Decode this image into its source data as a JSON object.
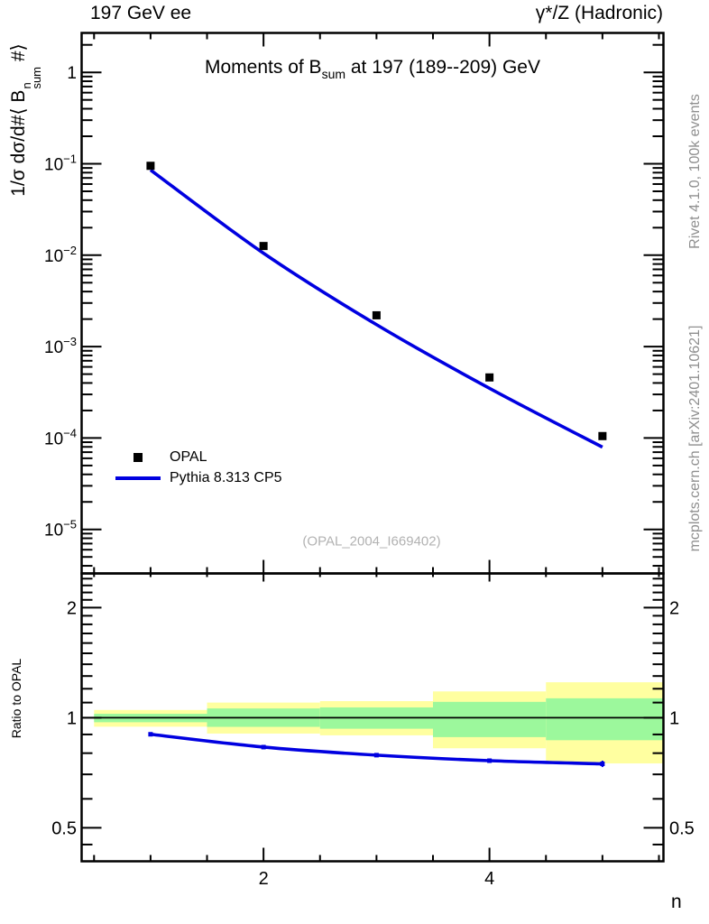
{
  "header": {
    "left": "197 GeV ee",
    "right": "γ*/Z (Hadronic)"
  },
  "title": {
    "pre": "Moments of B",
    "sub": "sum",
    "post": " at 197 (189--209) GeV"
  },
  "y_axis_label": {
    "pre": "1/σ  dσ/d#⟨ B",
    "sup": "n",
    "sub": "sum",
    "post": " #⟩"
  },
  "ratio_axis_label": "Ratio to OPAL",
  "x_axis_label": "n",
  "watermark": "(OPAL_2004_I669402)",
  "side_notes": {
    "rivet": "Rivet 4.1.0,  100k events",
    "mcplots": "mcplots.cern.ch [arXiv:2401.10621]"
  },
  "legend": {
    "items": [
      {
        "label": "OPAL",
        "marker": "filled-square",
        "color": "#000000"
      },
      {
        "label": "Pythia 8.313 CP5",
        "marker": "line",
        "color": "#0000e0"
      }
    ]
  },
  "colors": {
    "model_blue": "#0000e0",
    "band_yellow": "#ffffa0",
    "band_green": "#9cf89c",
    "marker_black": "#000000",
    "note_gray": "#8f8f8f",
    "watermark_gray": "#b2b2b2"
  },
  "chart_data": {
    "type": "line",
    "title": "Moments of B_sum at 197 (189--209) GeV",
    "xlabel": "n",
    "yscale": "log",
    "x": [
      1,
      2,
      3,
      4,
      5
    ],
    "xlim": [
      0.39,
      5.54
    ],
    "ylim": [
      3.3e-06,
      2.7
    ],
    "series": [
      {
        "name": "OPAL",
        "style": "scatter-square",
        "color": "#000000",
        "values": [
          0.095,
          0.0126,
          0.0022,
          0.00046,
          0.000105
        ]
      },
      {
        "name": "Pythia 8.313 CP5",
        "style": "line",
        "color": "#0000e0",
        "values": [
          0.0855,
          0.0105,
          0.00174,
          0.00035,
          7.95e-05
        ]
      }
    ],
    "x_ticks": {
      "labeled": [
        {
          "v": 2,
          "label": "2"
        },
        {
          "v": 4,
          "label": "4"
        }
      ],
      "minor": [
        0.5,
        1,
        1.5,
        2.5,
        3,
        3.5,
        4.5,
        5,
        5.5
      ]
    },
    "y_ticks": [
      {
        "v": 1,
        "base": "1",
        "exp": ""
      },
      {
        "v": 0.1,
        "base": "10",
        "exp": "−1"
      },
      {
        "v": 0.01,
        "base": "10",
        "exp": "−2"
      },
      {
        "v": 0.001,
        "base": "10",
        "exp": "−3"
      },
      {
        "v": 0.0001,
        "base": "10",
        "exp": "−4"
      },
      {
        "v": 1e-05,
        "base": "10",
        "exp": "−5"
      }
    ],
    "ratio": {
      "ylabel": "Ratio to OPAL",
      "yscale": "log",
      "ylim": [
        0.405,
        2.48
      ],
      "values": [
        0.901,
        0.831,
        0.79,
        0.763,
        0.748
      ],
      "errors": [
        0.006,
        0.006,
        0.008,
        0.01,
        0.015
      ],
      "y_ticks": [
        {
          "v": 2,
          "label": "2"
        },
        {
          "v": 1,
          "label": "1"
        },
        {
          "v": 0.5,
          "label": "0.5"
        }
      ],
      "y_minor_ticks": [
        2.4,
        2.3,
        2.2,
        2.1,
        1.9,
        1.8,
        1.7,
        1.6,
        1.5,
        1.4,
        1.3,
        1.2,
        1.1,
        0.9,
        0.8,
        0.7,
        0.6,
        0.45
      ],
      "bands": [
        {
          "range": [
            0.5,
            1.5
          ],
          "yellow": [
            0.945,
            1.05
          ],
          "green": [
            0.972,
            1.025
          ]
        },
        {
          "range": [
            1.5,
            2.5
          ],
          "yellow": [
            0.905,
            1.1
          ],
          "green": [
            0.944,
            1.06
          ]
        },
        {
          "range": [
            2.5,
            3.5
          ],
          "yellow": [
            0.895,
            1.11
          ],
          "green": [
            0.933,
            1.067
          ]
        },
        {
          "range": [
            3.5,
            4.5
          ],
          "yellow": [
            0.825,
            1.18
          ],
          "green": [
            0.885,
            1.105
          ]
        },
        {
          "range": [
            4.5,
            5.54
          ],
          "yellow": [
            0.75,
            1.25
          ],
          "green": [
            0.868,
            1.13
          ]
        }
      ]
    }
  }
}
